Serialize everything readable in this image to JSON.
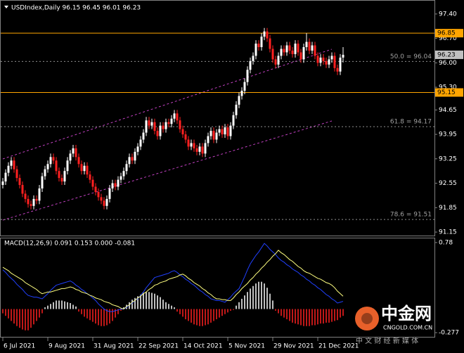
{
  "chart_data": {
    "type": "candlestick",
    "title": "USDIndex,Daily  96.15 96.45 96.01 96.23",
    "categories": [
      "6 Jul 2021",
      null,
      null,
      null,
      null,
      null,
      null,
      null,
      null,
      null,
      null,
      null,
      null,
      null,
      null,
      null,
      "9 Aug 2021",
      null,
      null,
      null,
      null,
      null,
      null,
      null,
      null,
      null,
      null,
      null,
      null,
      null,
      null,
      null,
      "31 Aug 2021",
      null,
      null,
      null,
      null,
      null,
      null,
      null,
      null,
      null,
      null,
      null,
      null,
      null,
      null,
      null,
      "22 Sep 2021",
      null,
      null,
      null,
      null,
      null,
      null,
      null,
      null,
      null,
      null,
      null,
      null,
      null,
      null,
      null,
      "14 Oct 2021",
      null,
      null,
      null,
      null,
      null,
      null,
      null,
      null,
      null,
      null,
      null,
      null,
      null,
      null,
      null,
      "5 Nov 2021",
      null,
      null,
      null,
      null,
      null,
      null,
      null,
      null,
      null,
      null,
      null,
      null,
      null,
      null,
      null,
      "29 Nov 2021",
      null,
      null,
      null,
      null,
      null,
      null,
      null,
      null,
      null,
      null,
      null,
      null,
      null,
      null,
      null,
      "21 Dec 2021",
      null,
      null,
      null,
      null,
      null,
      null,
      null,
      null,
      null
    ],
    "ohlc": [
      [
        92.5,
        92.7,
        92.4,
        92.6
      ],
      [
        92.6,
        92.95,
        92.5,
        92.85
      ],
      [
        92.85,
        93.15,
        92.75,
        93.05
      ],
      [
        93.05,
        93.3,
        92.95,
        93.2
      ],
      [
        93.2,
        93.3,
        92.85,
        92.95
      ],
      [
        92.95,
        93.05,
        92.6,
        92.7
      ],
      [
        92.7,
        92.8,
        92.4,
        92.5
      ],
      [
        92.5,
        92.6,
        92.15,
        92.25
      ],
      [
        92.25,
        92.35,
        92.0,
        92.1
      ],
      [
        92.1,
        92.2,
        91.85,
        91.95
      ],
      [
        91.95,
        92.05,
        91.8,
        91.9
      ],
      [
        91.9,
        92.2,
        91.8,
        92.1
      ],
      [
        92.1,
        92.2,
        91.95,
        92.05
      ],
      [
        92.05,
        92.5,
        91.95,
        92.4
      ],
      [
        92.4,
        92.85,
        92.3,
        92.75
      ],
      [
        92.75,
        93.05,
        92.65,
        92.95
      ],
      [
        92.95,
        93.2,
        92.85,
        93.1
      ],
      [
        93.1,
        93.4,
        93.0,
        93.3
      ],
      [
        93.3,
        93.4,
        93.1,
        93.2
      ],
      [
        93.2,
        93.3,
        92.8,
        92.9
      ],
      [
        92.9,
        93.0,
        92.6,
        92.7
      ],
      [
        92.7,
        92.8,
        92.5,
        92.6
      ],
      [
        92.6,
        93.0,
        92.5,
        92.9
      ],
      [
        92.9,
        93.3,
        92.8,
        93.2
      ],
      [
        93.2,
        93.5,
        93.1,
        93.4
      ],
      [
        93.4,
        93.65,
        93.3,
        93.55
      ],
      [
        93.55,
        93.65,
        93.2,
        93.3
      ],
      [
        93.3,
        93.4,
        93.0,
        93.1
      ],
      [
        93.1,
        93.2,
        92.8,
        92.9
      ],
      [
        92.9,
        93.15,
        92.8,
        93.05
      ],
      [
        93.05,
        93.15,
        92.7,
        92.8
      ],
      [
        92.8,
        92.9,
        92.55,
        92.65
      ],
      [
        92.65,
        92.75,
        92.35,
        92.45
      ],
      [
        92.45,
        92.55,
        92.2,
        92.3
      ],
      [
        92.3,
        92.4,
        92.05,
        92.15
      ],
      [
        92.15,
        92.25,
        91.95,
        92.05
      ],
      [
        92.05,
        92.15,
        91.8,
        91.9
      ],
      [
        91.9,
        92.2,
        91.8,
        92.1
      ],
      [
        92.1,
        92.5,
        92.0,
        92.4
      ],
      [
        92.4,
        92.65,
        92.3,
        92.55
      ],
      [
        92.55,
        92.65,
        92.35,
        92.45
      ],
      [
        92.45,
        92.75,
        92.35,
        92.65
      ],
      [
        92.65,
        92.85,
        92.55,
        92.75
      ],
      [
        92.75,
        93.0,
        92.65,
        92.9
      ],
      [
        92.9,
        93.2,
        92.8,
        93.1
      ],
      [
        93.1,
        93.4,
        93.0,
        93.3
      ],
      [
        93.3,
        93.4,
        93.1,
        93.2
      ],
      [
        93.2,
        93.55,
        93.1,
        93.45
      ],
      [
        93.45,
        93.7,
        93.35,
        93.6
      ],
      [
        93.6,
        93.9,
        93.5,
        93.8
      ],
      [
        93.8,
        94.1,
        93.7,
        94.0
      ],
      [
        94.0,
        94.45,
        93.9,
        94.35
      ],
      [
        94.35,
        94.45,
        94.1,
        94.2
      ],
      [
        94.2,
        94.4,
        94.1,
        94.3
      ],
      [
        94.3,
        94.4,
        93.95,
        94.05
      ],
      [
        94.05,
        94.15,
        93.8,
        93.9
      ],
      [
        93.9,
        94.3,
        93.8,
        94.2
      ],
      [
        94.2,
        94.3,
        94.0,
        94.1
      ],
      [
        94.1,
        94.4,
        94.0,
        94.3
      ],
      [
        94.3,
        94.4,
        94.15,
        94.25
      ],
      [
        94.25,
        94.5,
        94.15,
        94.4
      ],
      [
        94.4,
        94.65,
        94.3,
        94.55
      ],
      [
        94.55,
        94.65,
        94.25,
        94.35
      ],
      [
        94.35,
        94.45,
        94.0,
        94.1
      ],
      [
        94.1,
        94.2,
        93.85,
        93.95
      ],
      [
        93.95,
        94.05,
        93.7,
        93.8
      ],
      [
        93.8,
        93.9,
        93.5,
        93.6
      ],
      [
        93.6,
        93.8,
        93.5,
        93.7
      ],
      [
        93.7,
        93.8,
        93.45,
        93.55
      ],
      [
        93.55,
        93.65,
        93.35,
        93.45
      ],
      [
        93.45,
        93.7,
        93.35,
        93.6
      ],
      [
        93.6,
        93.7,
        93.3,
        93.4
      ],
      [
        93.4,
        93.8,
        93.3,
        93.7
      ],
      [
        93.7,
        94.0,
        93.6,
        93.9
      ],
      [
        93.9,
        94.15,
        93.8,
        94.05
      ],
      [
        94.05,
        94.15,
        93.7,
        93.8
      ],
      [
        93.8,
        94.1,
        93.7,
        94.0
      ],
      [
        94.0,
        94.2,
        93.9,
        94.1
      ],
      [
        94.1,
        94.2,
        93.85,
        93.95
      ],
      [
        93.95,
        94.25,
        93.85,
        94.15
      ],
      [
        94.15,
        94.25,
        93.8,
        93.9
      ],
      [
        93.9,
        94.3,
        93.8,
        94.2
      ],
      [
        94.2,
        94.6,
        94.1,
        94.5
      ],
      [
        94.5,
        94.9,
        94.4,
        94.8
      ],
      [
        94.8,
        95.15,
        94.7,
        95.05
      ],
      [
        95.05,
        95.3,
        94.95,
        95.2
      ],
      [
        95.2,
        95.55,
        95.1,
        95.45
      ],
      [
        95.45,
        95.9,
        95.35,
        95.8
      ],
      [
        95.8,
        96.15,
        95.7,
        96.05
      ],
      [
        96.05,
        96.3,
        95.95,
        96.2
      ],
      [
        96.2,
        96.65,
        96.1,
        96.55
      ],
      [
        96.55,
        96.65,
        96.35,
        96.45
      ],
      [
        96.45,
        96.85,
        96.35,
        96.75
      ],
      [
        96.75,
        97.0,
        96.65,
        96.9
      ],
      [
        96.9,
        97.0,
        96.6,
        96.7
      ],
      [
        96.7,
        96.8,
        96.3,
        96.4
      ],
      [
        96.4,
        96.5,
        96.0,
        96.1
      ],
      [
        96.1,
        96.2,
        95.85,
        95.95
      ],
      [
        95.95,
        96.3,
        95.85,
        96.2
      ],
      [
        96.2,
        96.5,
        96.1,
        96.4
      ],
      [
        96.4,
        96.5,
        96.2,
        96.3
      ],
      [
        96.3,
        96.6,
        96.2,
        96.5
      ],
      [
        96.5,
        96.6,
        96.25,
        96.35
      ],
      [
        96.35,
        96.45,
        96.15,
        96.25
      ],
      [
        96.25,
        96.65,
        96.15,
        96.55
      ],
      [
        96.55,
        96.65,
        96.2,
        96.3
      ],
      [
        96.3,
        96.4,
        96.0,
        96.1
      ],
      [
        96.1,
        96.55,
        96.0,
        96.45
      ],
      [
        96.45,
        96.85,
        96.35,
        96.6
      ],
      [
        96.6,
        96.7,
        96.25,
        96.35
      ],
      [
        96.35,
        96.6,
        96.25,
        96.5
      ],
      [
        96.5,
        96.6,
        96.1,
        96.2
      ],
      [
        96.2,
        96.3,
        95.9,
        96.0
      ],
      [
        96.0,
        96.25,
        95.9,
        96.15
      ],
      [
        96.15,
        96.25,
        95.95,
        96.05
      ],
      [
        96.05,
        96.15,
        95.85,
        95.95
      ],
      [
        95.95,
        96.2,
        95.85,
        96.1
      ],
      [
        96.1,
        96.3,
        96.0,
        96.2
      ],
      [
        96.2,
        96.3,
        95.75,
        95.85
      ],
      [
        95.85,
        95.95,
        95.65,
        95.75
      ],
      [
        95.75,
        96.25,
        95.65,
        96.15
      ],
      [
        96.15,
        96.45,
        96.01,
        96.23
      ]
    ],
    "up_color": "#ffffff",
    "down_color": "#ff2020",
    "ylim": [
      91.05,
      97.78
    ],
    "yticks": [
      {
        "value": 97.4,
        "label": "97.40"
      },
      {
        "value": 96.7,
        "label": "96.70"
      },
      {
        "value": 96.0,
        "label": "96.00"
      },
      {
        "value": 95.3,
        "label": "95.30"
      },
      {
        "value": 94.65,
        "label": "94.65"
      },
      {
        "value": 93.95,
        "label": "93.95"
      },
      {
        "value": 93.25,
        "label": "93.25"
      },
      {
        "value": 92.55,
        "label": "92.55"
      },
      {
        "value": 91.85,
        "label": "91.85"
      },
      {
        "value": 91.15,
        "label": "91.15"
      }
    ],
    "levels": [
      {
        "value": 96.85,
        "color": "#ffa500"
      },
      {
        "value": 95.15,
        "color": "#ffa500"
      }
    ],
    "fib": [
      {
        "label": "50.0 = 96.04",
        "value": 96.04
      },
      {
        "label": "61.8 = 94.17",
        "value": 94.17
      },
      {
        "label": "78.6 = 91.51",
        "value": 91.51
      }
    ],
    "indicator": {
      "type": "macd",
      "label": "MACD(12,26,9) 0.091 0.153 0.000 -0.081",
      "ylim": [
        -0.326,
        0.829
      ],
      "yticks": [
        0.78,
        -0.277
      ],
      "macd_color": "#2040ff",
      "signal_color": "#ffff80",
      "positive_color": "#ffffff",
      "negative_color": "#ff2020",
      "macd": [
        0.46,
        0.43,
        0.39,
        0.36,
        0.33,
        0.29,
        0.26,
        0.23,
        0.19,
        0.16,
        0.15,
        0.14,
        0.14,
        0.13,
        0.12,
        0.15,
        0.18,
        0.22,
        0.25,
        0.28,
        0.29,
        0.3,
        0.31,
        0.32,
        0.33,
        0.31,
        0.28,
        0.26,
        0.23,
        0.21,
        0.18,
        0.16,
        0.13,
        0.1,
        0.06,
        0.03,
        0.0,
        -0.02,
        -0.03,
        -0.03,
        -0.02,
        -0.01,
        0.0,
        0.0,
        0.02,
        0.05,
        0.07,
        0.1,
        0.12,
        0.16,
        0.2,
        0.25,
        0.29,
        0.33,
        0.37,
        0.38,
        0.39,
        0.4,
        0.41,
        0.42,
        0.44,
        0.45,
        0.43,
        0.4,
        0.38,
        0.35,
        0.33,
        0.3,
        0.28,
        0.25,
        0.22,
        0.2,
        0.17,
        0.15,
        0.12,
        0.11,
        0.1,
        0.1,
        0.09,
        0.08,
        0.11,
        0.14,
        0.18,
        0.21,
        0.24,
        0.31,
        0.38,
        0.46,
        0.53,
        0.58,
        0.63,
        0.67,
        0.72,
        0.77,
        0.74,
        0.7,
        0.67,
        0.64,
        0.6,
        0.57,
        0.55,
        0.52,
        0.5,
        0.47,
        0.45,
        0.43,
        0.4,
        0.38,
        0.35,
        0.33,
        0.3,
        0.28,
        0.25,
        0.23,
        0.2,
        0.17,
        0.15,
        0.12,
        0.1,
        0.07,
        0.08,
        0.09
      ],
      "signal": [
        0.49,
        0.47,
        0.45,
        0.42,
        0.4,
        0.38,
        0.36,
        0.34,
        0.31,
        0.29,
        0.27,
        0.25,
        0.23,
        0.2,
        0.18,
        0.19,
        0.2,
        0.2,
        0.21,
        0.22,
        0.23,
        0.24,
        0.24,
        0.25,
        0.26,
        0.25,
        0.23,
        0.22,
        0.2,
        0.19,
        0.18,
        0.16,
        0.15,
        0.13,
        0.12,
        0.11,
        0.09,
        0.08,
        0.07,
        0.05,
        0.04,
        0.03,
        0.01,
        0.0,
        0.03,
        0.05,
        0.08,
        0.1,
        0.13,
        0.15,
        0.18,
        0.2,
        0.23,
        0.25,
        0.28,
        0.29,
        0.31,
        0.32,
        0.33,
        0.35,
        0.36,
        0.37,
        0.38,
        0.4,
        0.41,
        0.39,
        0.36,
        0.34,
        0.31,
        0.29,
        0.27,
        0.24,
        0.22,
        0.19,
        0.17,
        0.14,
        0.12,
        0.12,
        0.11,
        0.11,
        0.1,
        0.1,
        0.13,
        0.17,
        0.2,
        0.24,
        0.27,
        0.3,
        0.34,
        0.37,
        0.41,
        0.44,
        0.48,
        0.51,
        0.55,
        0.58,
        0.62,
        0.65,
        0.69,
        0.66,
        0.64,
        0.61,
        0.58,
        0.56,
        0.53,
        0.5,
        0.48,
        0.45,
        0.43,
        0.42,
        0.4,
        0.38,
        0.36,
        0.35,
        0.33,
        0.31,
        0.3,
        0.28,
        0.25,
        0.21,
        0.18,
        0.15
      ],
      "histogram": [
        -0.05,
        -0.08,
        -0.11,
        -0.14,
        -0.17,
        -0.2,
        -0.22,
        -0.24,
        -0.25,
        -0.25,
        -0.22,
        -0.18,
        -0.14,
        -0.1,
        -0.05,
        0.02,
        0.04,
        0.06,
        0.08,
        0.1,
        0.1,
        0.1,
        0.09,
        0.08,
        0.07,
        0.05,
        0.03,
        -0.03,
        -0.06,
        -0.09,
        -0.11,
        -0.13,
        -0.15,
        -0.17,
        -0.19,
        -0.2,
        -0.2,
        -0.19,
        -0.17,
        -0.14,
        -0.1,
        -0.06,
        -0.02,
        0.02,
        0.05,
        0.08,
        0.11,
        0.13,
        0.15,
        0.17,
        0.19,
        0.2,
        0.2,
        0.19,
        0.18,
        0.16,
        0.14,
        0.11,
        0.08,
        0.06,
        0.04,
        0.02,
        -0.03,
        -0.06,
        -0.09,
        -0.12,
        -0.14,
        -0.16,
        -0.18,
        -0.19,
        -0.2,
        -0.2,
        -0.19,
        -0.18,
        -0.16,
        -0.14,
        -0.12,
        -0.1,
        -0.08,
        -0.06,
        -0.04,
        -0.02,
        -0.01,
        0.04,
        0.08,
        0.12,
        0.16,
        0.2,
        0.24,
        0.27,
        0.3,
        0.32,
        0.32,
        0.3,
        0.25,
        0.18,
        0.1,
        -0.02,
        -0.05,
        -0.08,
        -0.1,
        -0.12,
        -0.14,
        -0.16,
        -0.17,
        -0.18,
        -0.19,
        -0.2,
        -0.2,
        -0.2,
        -0.19,
        -0.19,
        -0.18,
        -0.17,
        -0.17,
        -0.16,
        -0.16,
        -0.15,
        -0.14,
        -0.13,
        -0.1,
        -0.08
      ]
    }
  },
  "watermark": {
    "brand": "中金网",
    "site": "CNGOLD.COM.CN",
    "tagline": "中 文 财 经 新 媒 体"
  }
}
